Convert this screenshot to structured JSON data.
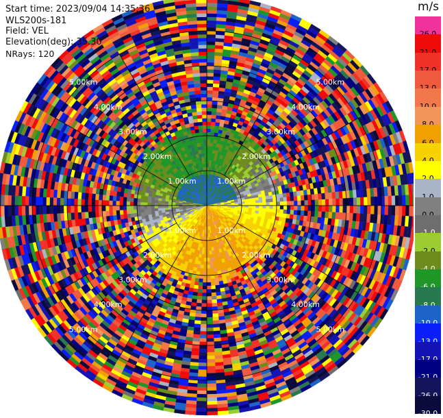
{
  "header": {
    "start_time": "Start time: 2023/09/04 14:35:36",
    "instrument": "WLS200s-181",
    "field": "Field: VEL",
    "elevation": "Elevation(deg): 35.30",
    "nrays": "NRays: 120"
  },
  "colorbar": {
    "unit": "m/s",
    "bins": [
      {
        "label": "26.0",
        "color": "#f0329a",
        "text": "#000000"
      },
      {
        "label": "21.0",
        "color": "#f00a0a",
        "text": "#000000"
      },
      {
        "label": "17.0",
        "color": "#f03228",
        "text": "#000000"
      },
      {
        "label": "13.0",
        "color": "#f05a3c",
        "text": "#000000"
      },
      {
        "label": "10.0",
        "color": "#f0784b",
        "text": "#000000"
      },
      {
        "label": "8.0",
        "color": "#f0965a",
        "text": "#000000"
      },
      {
        "label": "6.0",
        "color": "#f0a000",
        "text": "#000000"
      },
      {
        "label": "4.0",
        "color": "#f5d200",
        "text": "#000000"
      },
      {
        "label": "2.0",
        "color": "#ffff00",
        "text": "#000000"
      },
      {
        "label": "1.0",
        "color": "#aab4c8",
        "text": "#000000"
      },
      {
        "label": "0.0",
        "color": "#808080",
        "text": "#000000"
      },
      {
        "label": "-1.0",
        "color": "#6e6e6e",
        "text": "#ffffff"
      },
      {
        "label": "-2.0",
        "color": "#9bcd32",
        "text": "#000000"
      },
      {
        "label": "-4.0",
        "color": "#6e8c1e",
        "text": "#ffffff"
      },
      {
        "label": "-6.0",
        "color": "#1e9628",
        "text": "#ffffff"
      },
      {
        "label": "-8.0",
        "color": "#287850",
        "text": "#ffffff"
      },
      {
        "label": "-10.0",
        "color": "#1e64c8",
        "text": "#ffffff"
      },
      {
        "label": "-13.0",
        "color": "#0a1efa",
        "text": "#ffffff"
      },
      {
        "label": "-17.0",
        "color": "#1414b4",
        "text": "#ffffff"
      },
      {
        "label": "-21.0",
        "color": "#000082",
        "text": "#ffffff"
      },
      {
        "label": "-26.0",
        "color": "#14145a",
        "text": "#ffffff"
      },
      {
        "label": "-30.0",
        "color": "#0a0a3c",
        "text": "#ffffff"
      }
    ]
  },
  "chart_data": {
    "type": "heatmap",
    "projection": "polar-ppi",
    "field": "VEL",
    "units": "m/s",
    "nrays": 120,
    "max_range_km": 6.0,
    "range_rings_km": [
      1.0,
      2.0,
      3.0,
      4.0,
      5.0
    ],
    "range_labels": [
      "1.00km",
      "2.00km",
      "3.00km",
      "4.00km",
      "5.00km"
    ],
    "spoke_angles_deg": [
      0,
      30,
      60,
      90,
      120,
      150,
      180,
      210,
      240,
      270,
      300,
      330
    ],
    "coherent_region_km": 2.3,
    "velocity_pattern": {
      "north_half": "mostly negative (-2 to -8 m/s, greens)",
      "south_half": "mostly positive (2 to 10 m/s, yellows/oranges)",
      "beyond_coherent_region": "noisy random values across full scale"
    }
  }
}
